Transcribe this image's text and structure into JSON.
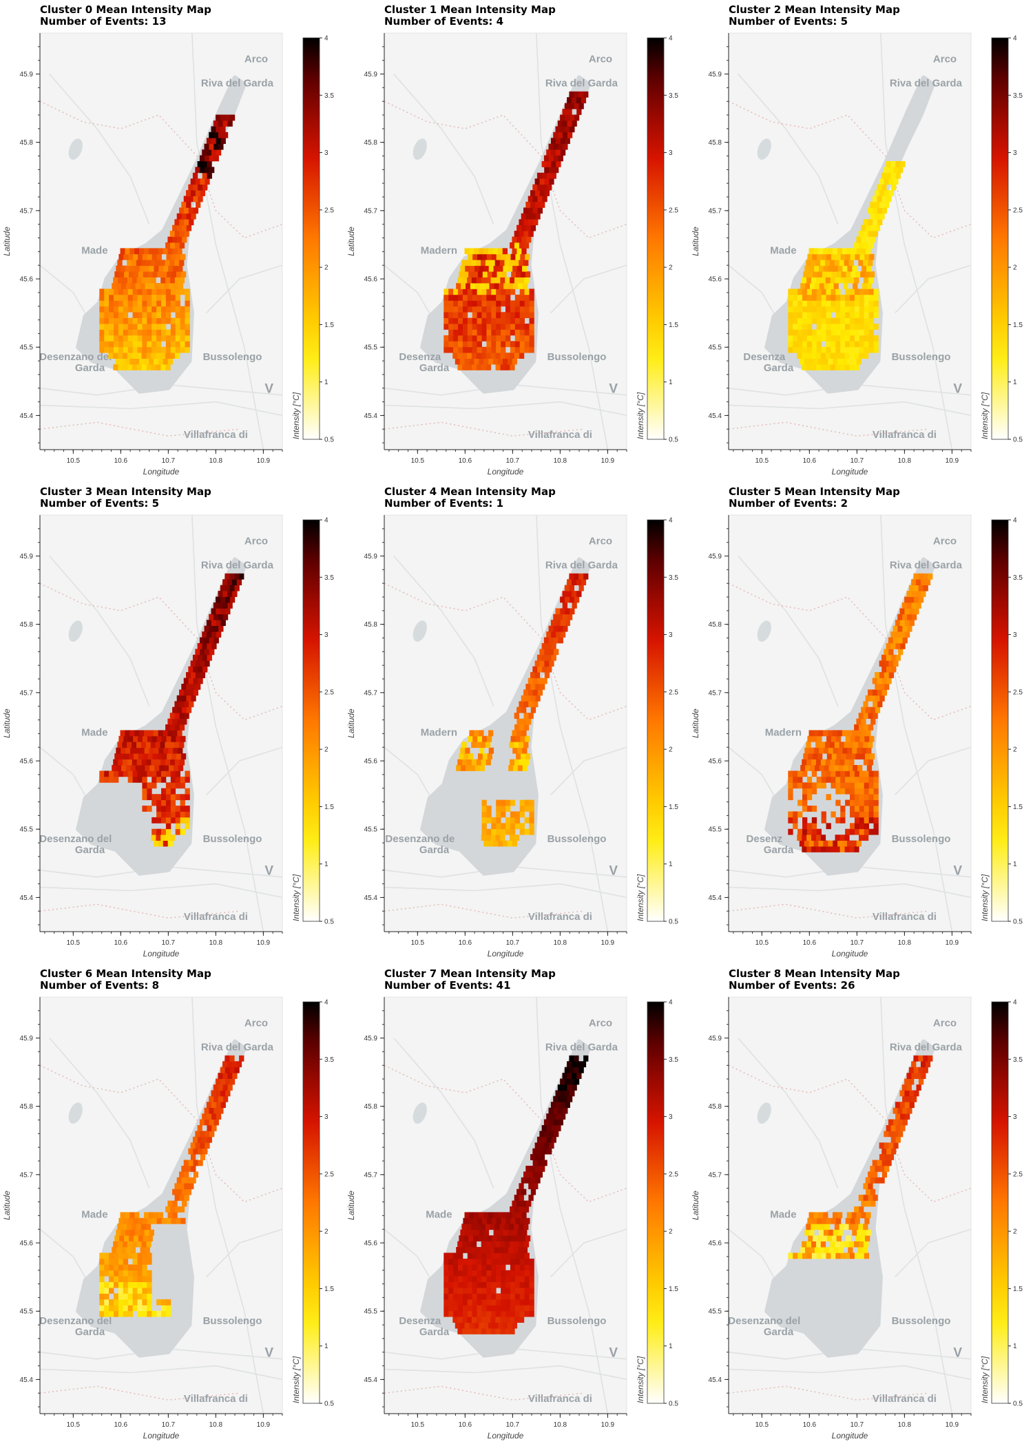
{
  "chart_data": [
    {
      "type": "heatmap",
      "title": "Cluster 0 Mean Intensity Map",
      "subtitle": "Number of Events: 13",
      "xlabel": "Longitude",
      "ylabel": "Latitude",
      "xlim": [
        10.43,
        10.94
      ],
      "ylim": [
        45.35,
        45.96
      ],
      "xticks": [
        "10.5",
        "10.6",
        "10.7",
        "10.8",
        "10.9"
      ],
      "yticks": [
        "45.4",
        "45.5",
        "45.6",
        "45.7",
        "45.8",
        "45.9"
      ],
      "colorbar": {
        "label": "Intensity [°C]",
        "min": 0.5,
        "max": 4,
        "ticks": [
          "0.5",
          "1",
          "1.5",
          "2",
          "2.5",
          "3",
          "3.5",
          "4"
        ]
      },
      "coverage": "full",
      "base": 1.7,
      "north": 3.5,
      "south": 1.6,
      "var": 0.35,
      "extent": [
        45.46,
        45.84
      ],
      "hotspot": [
        45.78,
        3.8
      ],
      "places": [
        "Arco",
        "Riva del Garda",
        "Made",
        "Desenzano del",
        "Garda",
        "Bussolengo",
        "V",
        "Villafranca di"
      ]
    },
    {
      "type": "heatmap",
      "title": "Cluster 1 Mean Intensity Map",
      "subtitle": "Number of Events: 4",
      "xlabel": "Longitude",
      "ylabel": "Latitude",
      "xlim": [
        10.43,
        10.94
      ],
      "ylim": [
        45.35,
        45.96
      ],
      "xticks": [
        "10.5",
        "10.6",
        "10.7",
        "10.8",
        "10.9"
      ],
      "yticks": [
        "45.4",
        "45.5",
        "45.6",
        "45.7",
        "45.8",
        "45.9"
      ],
      "colorbar": {
        "label": "Intensity [°C]",
        "min": 0.5,
        "max": 4,
        "ticks": [
          "0.5",
          "1",
          "1.5",
          "2",
          "2.5",
          "3",
          "3.5",
          "4"
        ]
      },
      "coverage": "full",
      "base": 2.4,
      "north": 3.4,
      "south": 2.5,
      "var": 0.3,
      "extent": [
        45.46,
        45.87
      ],
      "hotspot": [
        45.61,
        1.5
      ],
      "places": [
        "Arco",
        "Riva del Garda",
        "Madern",
        "Desenza",
        "Garda",
        "Bussolengo",
        "V",
        "Villafranca di"
      ]
    },
    {
      "type": "heatmap",
      "title": "Cluster 2 Mean Intensity Map",
      "subtitle": "Number of Events: 5",
      "xlabel": "Longitude",
      "ylabel": "Latitude",
      "xlim": [
        10.43,
        10.94
      ],
      "ylim": [
        45.35,
        45.96
      ],
      "xticks": [
        "10.5",
        "10.6",
        "10.7",
        "10.8",
        "10.9"
      ],
      "yticks": [
        "45.4",
        "45.5",
        "45.6",
        "45.7",
        "45.8",
        "45.9"
      ],
      "colorbar": {
        "label": "Intensity [°C]",
        "min": 0.5,
        "max": 4,
        "ticks": [
          "0.5",
          "1",
          "1.5",
          "2",
          "2.5",
          "3",
          "3.5",
          "4"
        ]
      },
      "coverage": "full",
      "base": 1.4,
      "north": 1.3,
      "south": 1.4,
      "var": 0.18,
      "extent": [
        45.46,
        45.77
      ],
      "hotspot": [
        45.6,
        1.9
      ],
      "places": [
        "Arco",
        "Riva del Garda",
        "Made",
        "Desenza",
        "Garda",
        "Bussolengo",
        "V",
        "Villafranca di"
      ]
    },
    {
      "type": "heatmap",
      "title": "Cluster 3 Mean Intensity Map",
      "subtitle": "Number of Events: 5",
      "xlabel": "Longitude",
      "ylabel": "Latitude",
      "xlim": [
        10.43,
        10.94
      ],
      "ylim": [
        45.35,
        45.96
      ],
      "xticks": [
        "10.5",
        "10.6",
        "10.7",
        "10.8",
        "10.9"
      ],
      "yticks": [
        "45.4",
        "45.5",
        "45.6",
        "45.7",
        "45.8",
        "45.9"
      ],
      "colorbar": {
        "label": "Intensity [°C]",
        "min": 0.5,
        "max": 4,
        "ticks": [
          "0.5",
          "1",
          "1.5",
          "2",
          "2.5",
          "3",
          "3.5",
          "4"
        ]
      },
      "coverage": "north",
      "base": 3.0,
      "north": 3.5,
      "south": 2.6,
      "var": 0.35,
      "extent": [
        45.47,
        45.87
      ],
      "hotspot": [
        45.48,
        1.4
      ],
      "places": [
        "Arco",
        "Riva del Garda",
        "Made",
        "Desenzano del",
        "Garda",
        "Bussolengo",
        "V",
        "Villafranca di"
      ]
    },
    {
      "type": "heatmap",
      "title": "Cluster 4 Mean Intensity Map",
      "subtitle": "Number of Events: 1",
      "xlabel": "Longitude",
      "ylabel": "Latitude",
      "xlim": [
        10.43,
        10.94
      ],
      "ylim": [
        45.35,
        45.96
      ],
      "xticks": [
        "10.5",
        "10.6",
        "10.7",
        "10.8",
        "10.9"
      ],
      "yticks": [
        "45.4",
        "45.5",
        "45.6",
        "45.7",
        "45.8",
        "45.9"
      ],
      "colorbar": {
        "label": "Intensity [°C]",
        "min": 0.5,
        "max": 4,
        "ticks": [
          "0.5",
          "1",
          "1.5",
          "2",
          "2.5",
          "3",
          "3.5",
          "4"
        ]
      },
      "coverage": "patchy",
      "base": 2.1,
      "north": 2.9,
      "south": 1.7,
      "var": 0.25,
      "extent": [
        45.47,
        45.87
      ],
      "hotspot": [
        45.6,
        1.5
      ],
      "places": [
        "Arco",
        "Riva del Garda",
        "Madern",
        "Desenzano de",
        "Garda",
        "Bussolengo",
        "V",
        "Villafranca di"
      ]
    },
    {
      "type": "heatmap",
      "title": "Cluster 5 Mean Intensity Map",
      "subtitle": "Number of Events: 2",
      "xlabel": "Longitude",
      "ylabel": "Latitude",
      "xlim": [
        10.43,
        10.94
      ],
      "ylim": [
        45.35,
        45.96
      ],
      "xticks": [
        "10.5",
        "10.6",
        "10.7",
        "10.8",
        "10.9"
      ],
      "yticks": [
        "45.4",
        "45.5",
        "45.6",
        "45.7",
        "45.8",
        "45.9"
      ],
      "colorbar": {
        "label": "Intensity [°C]",
        "min": 0.5,
        "max": 4,
        "ticks": [
          "0.5",
          "1",
          "1.5",
          "2",
          "2.5",
          "3",
          "3.5",
          "4"
        ]
      },
      "coverage": "rim",
      "base": 2.1,
      "north": 2.2,
      "south": 2.4,
      "var": 0.35,
      "extent": [
        45.46,
        45.87
      ],
      "hotspot": [
        45.48,
        3.0
      ],
      "places": [
        "Arco",
        "Riva del Garda",
        "Madern",
        "Desenz",
        "Garda",
        "Bussolengo",
        "V",
        "Villafranca di"
      ]
    },
    {
      "type": "heatmap",
      "title": "Cluster 6 Mean Intensity Map",
      "subtitle": "Number of Events: 8",
      "xlabel": "Longitude",
      "ylabel": "Latitude",
      "xlim": [
        10.43,
        10.94
      ],
      "ylim": [
        45.35,
        45.96
      ],
      "xticks": [
        "10.5",
        "10.6",
        "10.7",
        "10.8",
        "10.9"
      ],
      "yticks": [
        "45.4",
        "45.5",
        "45.6",
        "45.7",
        "45.8",
        "45.9"
      ],
      "colorbar": {
        "label": "Intensity [°C]",
        "min": 0.5,
        "max": 4,
        "ticks": [
          "0.5",
          "1",
          "1.5",
          "2",
          "2.5",
          "3",
          "3.5",
          "4"
        ]
      },
      "coverage": "west",
      "base": 2.0,
      "north": 2.9,
      "south": 1.6,
      "var": 0.25,
      "extent": [
        45.49,
        45.87
      ],
      "hotspot": [
        45.5,
        1.2
      ],
      "places": [
        "Arco",
        "Riva del Garda",
        "Made",
        "Desenzano del",
        "Garda",
        "Bussolengo",
        "V",
        "Villafranca di"
      ]
    },
    {
      "type": "heatmap",
      "title": "Cluster 7 Mean Intensity Map",
      "subtitle": "Number of Events: 41",
      "xlabel": "Longitude",
      "ylabel": "Latitude",
      "xlim": [
        10.43,
        10.94
      ],
      "ylim": [
        45.35,
        45.96
      ],
      "xticks": [
        "10.5",
        "10.6",
        "10.7",
        "10.8",
        "10.9"
      ],
      "yticks": [
        "45.4",
        "45.5",
        "45.6",
        "45.7",
        "45.8",
        "45.9"
      ],
      "colorbar": {
        "label": "Intensity [°C]",
        "min": 0.5,
        "max": 4,
        "ticks": [
          "0.5",
          "1",
          "1.5",
          "2",
          "2.5",
          "3",
          "3.5",
          "4"
        ]
      },
      "coverage": "full",
      "base": 2.8,
      "north": 3.9,
      "south": 2.75,
      "var": 0.12,
      "extent": [
        45.46,
        45.87
      ],
      "hotspot": [
        45.85,
        4.0
      ],
      "places": [
        "Arco",
        "Riva del Garda",
        "Made",
        "Desenza",
        "Garda",
        "Bussolengo",
        "V",
        "Villafranca di"
      ]
    },
    {
      "type": "heatmap",
      "title": "Cluster 8 Mean Intensity Map",
      "subtitle": "Number of Events: 26",
      "xlabel": "Longitude",
      "ylabel": "Latitude",
      "xlim": [
        10.43,
        10.94
      ],
      "ylim": [
        45.35,
        45.96
      ],
      "xticks": [
        "10.5",
        "10.6",
        "10.7",
        "10.8",
        "10.9"
      ],
      "yticks": [
        "45.4",
        "45.5",
        "45.6",
        "45.7",
        "45.8",
        "45.9"
      ],
      "colorbar": {
        "label": "Intensity [°C]",
        "min": 0.5,
        "max": 4,
        "ticks": [
          "0.5",
          "1",
          "1.5",
          "2",
          "2.5",
          "3",
          "3.5",
          "4"
        ]
      },
      "coverage": "northonly",
      "base": 2.0,
      "north": 2.8,
      "south": 1.8,
      "var": 0.28,
      "extent": [
        45.57,
        45.87
      ],
      "hotspot": [
        45.59,
        1.2
      ],
      "places": [
        "Arco",
        "Riva del Garda",
        "Made",
        "Desenzano del",
        "Garda",
        "Bussolengo",
        "V",
        "Villafranca di"
      ]
    }
  ]
}
